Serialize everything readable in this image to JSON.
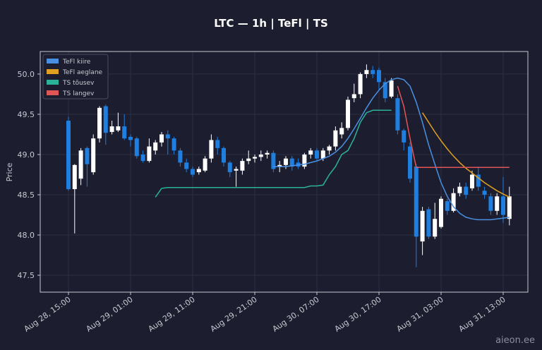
{
  "chart_data": {
    "type": "candlestick",
    "title": "LTC — 1h  |  TeFl  |  TS",
    "ylabel": "Price",
    "watermark": "aieon.ee",
    "up_color": "#ffffff",
    "down_color": "#1e7fe0",
    "grid": true,
    "legend": "upper left",
    "ylim": [
      47.29,
      50.28
    ],
    "yticks": [
      47.5,
      {
        "value": 48,
        "label": "48.0"
      },
      48.5,
      {
        "value": 49,
        "label": "49.0"
      },
      49.5,
      {
        "value": 50,
        "label": "50.0"
      }
    ],
    "categories": [
      "Aug 28, 15:00",
      null,
      null,
      null,
      null,
      null,
      null,
      null,
      null,
      null,
      "Aug 29, 01:00",
      null,
      null,
      null,
      null,
      null,
      null,
      null,
      null,
      null,
      "Aug 29, 11:00",
      null,
      null,
      null,
      null,
      null,
      null,
      null,
      null,
      null,
      "Aug 29, 21:00",
      null,
      null,
      null,
      null,
      null,
      null,
      null,
      null,
      null,
      "Aug 30, 07:00",
      null,
      null,
      null,
      null,
      null,
      null,
      null,
      null,
      null,
      "Aug 30, 17:00",
      null,
      null,
      null,
      null,
      null,
      null,
      null,
      null,
      null,
      "Aug 31, 03:00",
      null,
      null,
      null,
      null,
      null,
      null,
      null,
      null,
      null,
      "Aug 31, 13:00",
      null
    ],
    "open": [
      49.42,
      48.57,
      48.7,
      49.08,
      48.78,
      49.2,
      49.6,
      49.28,
      49.3,
      49.35,
      49.22,
      49.2,
      49.0,
      48.92,
      49.05,
      49.15,
      49.25,
      49.2,
      49.05,
      48.9,
      48.82,
      48.78,
      48.8,
      48.95,
      49.18,
      49.08,
      48.9,
      48.8,
      48.8,
      48.92,
      48.95,
      48.97,
      49.0,
      49.02,
      48.85,
      48.87,
      48.95,
      48.9,
      48.85,
      49.0,
      49.05,
      48.95,
      49.05,
      49.1,
      49.25,
      49.33,
      49.7,
      49.75,
      50.0,
      50.05,
      50.05,
      49.9,
      49.72,
      49.7,
      49.3,
      49.1,
      48.85,
      47.92,
      48.32,
      47.98,
      48.1,
      48.42,
      48.3,
      48.52,
      48.6,
      48.58,
      48.75,
      48.55,
      48.48,
      48.3,
      48.48,
      48.2
    ],
    "high": [
      49.47,
      48.88,
      49.08,
      49.1,
      49.25,
      49.6,
      49.62,
      49.42,
      49.52,
      49.5,
      49.25,
      49.22,
      49.05,
      49.2,
      49.18,
      49.28,
      49.3,
      49.22,
      49.08,
      48.95,
      48.85,
      48.85,
      48.98,
      49.25,
      49.22,
      49.1,
      48.92,
      48.85,
      48.95,
      49.05,
      49.0,
      49.05,
      49.05,
      49.05,
      48.92,
      48.98,
      48.98,
      48.95,
      49.02,
      49.08,
      49.08,
      49.08,
      49.12,
      49.35,
      49.4,
      49.72,
      49.88,
      50.02,
      50.12,
      50.1,
      50.08,
      49.95,
      49.95,
      49.75,
      49.32,
      49.15,
      48.88,
      48.35,
      48.35,
      48.4,
      48.48,
      48.45,
      48.58,
      48.65,
      48.65,
      48.8,
      48.85,
      48.6,
      48.52,
      48.52,
      48.72,
      48.6
    ],
    "low": [
      48.55,
      48.02,
      48.62,
      48.6,
      48.75,
      49.15,
      49.12,
      49.25,
      49.28,
      49.18,
      49.1,
      48.95,
      48.9,
      48.9,
      49.0,
      49.1,
      49.0,
      49.0,
      48.85,
      48.78,
      48.72,
      48.75,
      48.78,
      48.9,
      49.0,
      48.85,
      48.72,
      48.6,
      48.75,
      48.88,
      48.9,
      48.92,
      48.95,
      48.78,
      48.78,
      48.82,
      48.8,
      48.82,
      48.82,
      48.95,
      48.92,
      48.92,
      49.0,
      49.05,
      49.2,
      49.3,
      49.65,
      49.7,
      49.95,
      49.95,
      49.8,
      49.65,
      49.7,
      49.25,
      49.05,
      48.65,
      47.6,
      47.75,
      47.95,
      47.95,
      48.08,
      48.25,
      48.28,
      48.48,
      48.45,
      48.55,
      48.55,
      48.45,
      48.25,
      48.25,
      48.15,
      48.12
    ],
    "close": [
      48.57,
      48.87,
      49.05,
      48.88,
      49.2,
      49.58,
      49.27,
      49.35,
      49.35,
      49.2,
      49.18,
      48.98,
      48.92,
      49.1,
      49.15,
      49.25,
      49.2,
      49.05,
      48.9,
      48.82,
      48.75,
      48.82,
      48.95,
      49.18,
      49.08,
      48.9,
      48.78,
      48.82,
      48.92,
      48.95,
      48.97,
      49.0,
      49.02,
      48.82,
      48.87,
      48.95,
      48.85,
      48.85,
      49.0,
      49.05,
      48.95,
      49.05,
      49.1,
      49.3,
      49.33,
      49.68,
      49.75,
      50.0,
      50.05,
      50.0,
      49.9,
      49.7,
      49.92,
      49.3,
      49.15,
      48.7,
      47.98,
      48.3,
      47.98,
      48.2,
      48.45,
      48.3,
      48.52,
      48.6,
      48.5,
      48.75,
      48.6,
      48.5,
      48.3,
      48.48,
      48.25,
      48.48
    ],
    "series": [
      {
        "name": "TeFl kiire",
        "color": "#4a90e2",
        "values": [
          null,
          null,
          null,
          null,
          null,
          null,
          null,
          null,
          null,
          null,
          null,
          null,
          null,
          null,
          null,
          null,
          null,
          null,
          null,
          null,
          null,
          null,
          null,
          null,
          null,
          null,
          null,
          null,
          null,
          null,
          null,
          null,
          null,
          48.85,
          48.85,
          48.85,
          48.86,
          48.87,
          48.88,
          48.9,
          48.92,
          48.95,
          48.98,
          49.03,
          49.1,
          49.2,
          49.32,
          49.45,
          49.58,
          49.7,
          49.8,
          49.88,
          49.93,
          49.95,
          49.93,
          49.85,
          49.65,
          49.4,
          49.12,
          48.88,
          48.65,
          48.48,
          48.35,
          48.27,
          48.22,
          48.2,
          48.19,
          48.19,
          48.19,
          48.2,
          48.21,
          48.22
        ]
      },
      {
        "name": "TeFl aeglane",
        "color": "#e0a020",
        "values": [
          null,
          null,
          null,
          null,
          null,
          null,
          null,
          null,
          null,
          null,
          null,
          null,
          null,
          null,
          null,
          null,
          null,
          null,
          null,
          null,
          null,
          null,
          null,
          null,
          null,
          null,
          null,
          null,
          null,
          null,
          null,
          null,
          null,
          null,
          null,
          null,
          null,
          null,
          null,
          null,
          null,
          null,
          null,
          null,
          null,
          null,
          null,
          null,
          null,
          null,
          null,
          null,
          null,
          null,
          null,
          null,
          null,
          49.52,
          49.4,
          49.28,
          49.17,
          49.07,
          48.98,
          48.9,
          48.83,
          48.77,
          48.71,
          48.65,
          48.6,
          48.55,
          48.51,
          48.47
        ]
      },
      {
        "name": "TS tõusev",
        "color": "#2bb39a",
        "values": [
          null,
          null,
          null,
          null,
          null,
          null,
          null,
          null,
          null,
          null,
          null,
          null,
          null,
          null,
          48.47,
          48.58,
          48.59,
          48.59,
          48.59,
          48.59,
          48.59,
          48.59,
          48.59,
          48.59,
          48.59,
          48.59,
          48.59,
          48.59,
          48.59,
          48.59,
          48.59,
          48.59,
          48.59,
          48.59,
          48.59,
          48.59,
          48.59,
          48.59,
          48.59,
          48.61,
          48.61,
          48.62,
          48.75,
          48.85,
          49.0,
          49.05,
          49.2,
          49.4,
          49.52,
          49.55,
          49.55,
          49.55,
          49.55,
          null,
          null,
          null,
          null,
          null,
          null,
          null,
          null,
          null,
          null,
          null,
          null,
          null,
          null,
          null,
          null,
          null,
          null,
          null
        ]
      },
      {
        "name": "TS langev",
        "color": "#e05555",
        "values": [
          null,
          null,
          null,
          null,
          null,
          null,
          null,
          null,
          null,
          null,
          null,
          null,
          null,
          null,
          null,
          null,
          null,
          null,
          null,
          null,
          null,
          null,
          null,
          null,
          null,
          null,
          null,
          null,
          null,
          null,
          null,
          null,
          null,
          null,
          null,
          null,
          null,
          null,
          null,
          null,
          null,
          null,
          null,
          null,
          null,
          null,
          null,
          null,
          null,
          null,
          null,
          null,
          null,
          49.85,
          49.6,
          49.2,
          48.84,
          48.84,
          48.84,
          48.84,
          48.84,
          48.84,
          48.84,
          48.84,
          48.84,
          48.84,
          48.84,
          48.84,
          48.84,
          48.84,
          48.84,
          48.84
        ]
      }
    ]
  }
}
